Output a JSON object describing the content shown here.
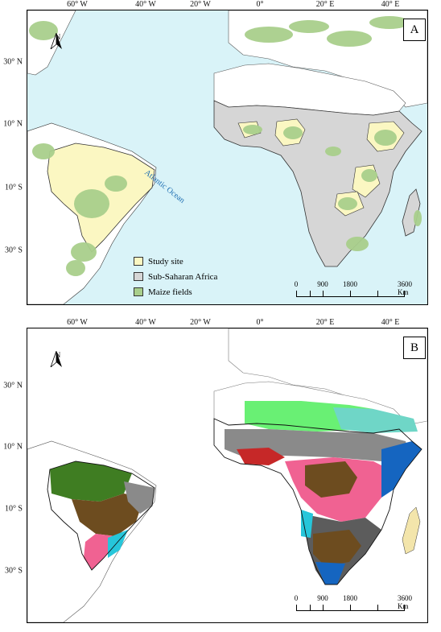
{
  "longitude_ticks": [
    "60° W",
    "40° W",
    "20° W",
    "0°",
    "20° E",
    "40° E"
  ],
  "latitude_ticks": [
    "30° N",
    "10° N",
    "10° S",
    "30° S"
  ],
  "panels": [
    {
      "label": "A",
      "north_label": "N",
      "ocean_label": "Atlantic Ocean",
      "legend": [
        {
          "label": "Study site",
          "color": "#fbf7c2"
        },
        {
          "label": "Sub-Saharan Africa",
          "color": "#d6d6d6"
        },
        {
          "label": "Maize fields",
          "color": "#a9cf8c"
        }
      ],
      "scale_labels": [
        "0",
        "900",
        "1800",
        "3600 Km"
      ]
    },
    {
      "label": "B",
      "north_label": "N",
      "scale_labels": [
        "0",
        "900",
        "1800",
        "3600 Km"
      ]
    }
  ],
  "colors": {
    "ocean": "#d9f3f8",
    "land": "#ffffff",
    "study_site": "#fbf7c2",
    "ssa": "#d6d6d6",
    "maize": "#a9cf8c",
    "zone_palette": [
      "#2e7d32",
      "#6d4c1f",
      "#f06292",
      "#8a8a8a",
      "#26c6da",
      "#1565c0",
      "#c62828",
      "#9ccc65",
      "#f3e5ab",
      "#4a148c"
    ]
  }
}
